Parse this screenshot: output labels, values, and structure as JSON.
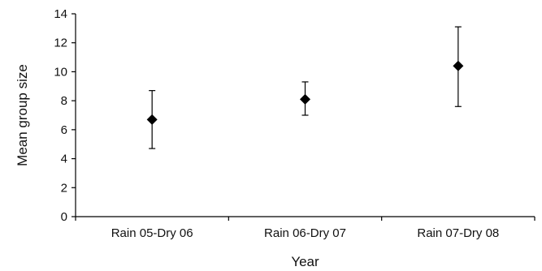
{
  "chart_data": {
    "type": "scatter",
    "title": "",
    "xlabel": "Year",
    "ylabel": "Mean group size",
    "categories": [
      "Rain 05-Dry 06",
      "Rain 06-Dry 07",
      "Rain 07-Dry 08"
    ],
    "values": [
      6.7,
      8.1,
      10.4
    ],
    "error_low": [
      4.7,
      7.0,
      7.6
    ],
    "error_high": [
      8.7,
      9.3,
      13.1
    ],
    "ylim": [
      0,
      14
    ],
    "yticks": [
      0,
      2,
      4,
      6,
      8,
      10,
      12,
      14
    ],
    "marker": "diamond",
    "grid": false,
    "color": "#000000"
  }
}
